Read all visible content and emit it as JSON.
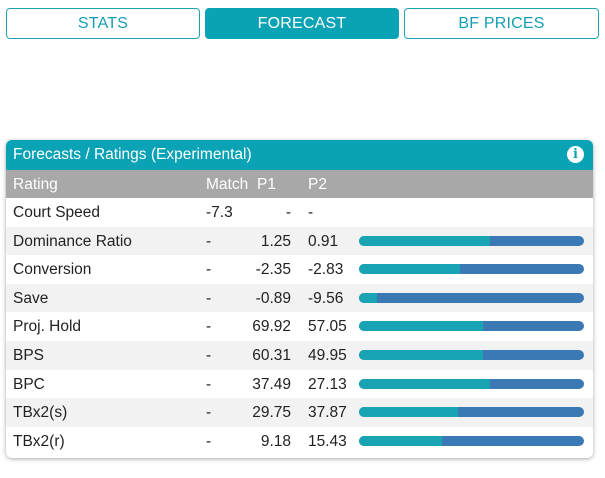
{
  "tabs": [
    "STATS",
    "FORECAST",
    "BF PRICES"
  ],
  "active_tab": 1,
  "panel": {
    "title": "Forecasts / Ratings (Experimental)",
    "info_icon": "info-icon"
  },
  "columns": [
    "Rating",
    "Match",
    "P1",
    "P2"
  ],
  "rows": [
    {
      "name": "Court Speed",
      "match": "-7.3",
      "p1": "-",
      "p2": "-",
      "p1_share": null
    },
    {
      "name": "Dominance Ratio",
      "match": "-",
      "p1": "1.25",
      "p2": "0.91",
      "p1_share": 0.58
    },
    {
      "name": "Conversion",
      "match": "-",
      "p1": "-2.35",
      "p2": "-2.83",
      "p1_share": 0.45
    },
    {
      "name": "Save",
      "match": "-",
      "p1": "-0.89",
      "p2": "-9.56",
      "p1_share": 0.08
    },
    {
      "name": "Proj. Hold",
      "match": "-",
      "p1": "69.92",
      "p2": "57.05",
      "p1_share": 0.55
    },
    {
      "name": "BPS",
      "match": "-",
      "p1": "60.31",
      "p2": "49.95",
      "p1_share": 0.55
    },
    {
      "name": "BPC",
      "match": "-",
      "p1": "37.49",
      "p2": "27.13",
      "p1_share": 0.58
    },
    {
      "name": "TBx2(s)",
      "match": "-",
      "p1": "29.75",
      "p2": "37.87",
      "p1_share": 0.44
    },
    {
      "name": "TBx2(r)",
      "match": "-",
      "p1": "9.18",
      "p2": "15.43",
      "p1_share": 0.37
    }
  ],
  "colors": {
    "accent": "#0aa2b5",
    "bar_p1": "#18a4b2",
    "bar_p2": "#3b79b4",
    "header_gray": "#a8a8a8"
  }
}
